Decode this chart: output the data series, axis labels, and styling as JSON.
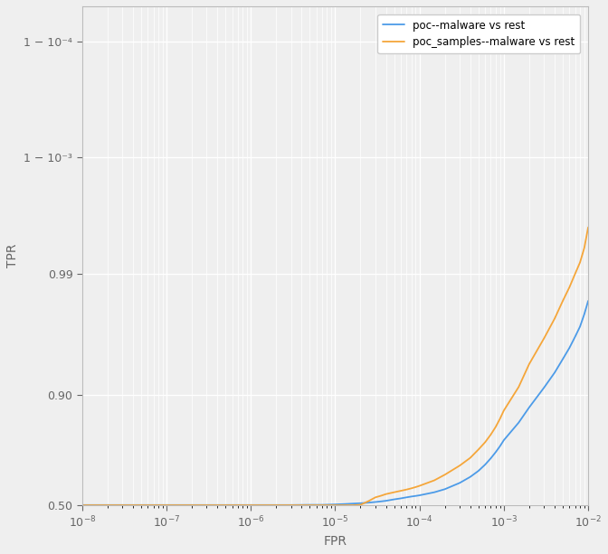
{
  "xlabel": "FPR",
  "ylabel": "TPR",
  "legend_labels": [
    "poc--malware vs rest",
    "poc_samples--malware vs rest"
  ],
  "line_colors": [
    "#4c9be8",
    "#f5a63a"
  ],
  "background_color": "#efefef",
  "grid_color": "#ffffff",
  "ytick_vals": [
    0.5,
    0.9,
    0.99,
    0.999,
    0.9999
  ],
  "ytick_labels": [
    "0.50",
    "0.90",
    "0.99",
    "1 − 10⁻³",
    "1 − 10⁻⁴"
  ],
  "blue_x": [
    1e-08,
    2e-08,
    5e-08,
    1e-07,
    2e-07,
    5e-07,
    1e-06,
    2e-06,
    3e-06,
    5e-06,
    7e-06,
    1e-05,
    1.3e-05,
    1.6e-05,
    2e-05,
    2.5e-05,
    3e-05,
    3.5e-05,
    4e-05,
    5e-05,
    6e-05,
    7e-05,
    8e-05,
    9e-05,
    0.0001,
    0.00015,
    0.0002,
    0.0003,
    0.0004,
    0.0005,
    0.0006,
    0.0007,
    0.0008,
    0.0009,
    0.001,
    0.0015,
    0.002,
    0.003,
    0.004,
    0.005,
    0.006,
    0.007,
    0.008,
    0.009,
    0.01
  ],
  "blue_y": [
    0.502,
    0.502,
    0.502,
    0.502,
    0.502,
    0.502,
    0.502,
    0.502,
    0.502,
    0.503,
    0.503,
    0.505,
    0.507,
    0.509,
    0.511,
    0.514,
    0.517,
    0.52,
    0.523,
    0.53,
    0.535,
    0.54,
    0.544,
    0.547,
    0.55,
    0.565,
    0.58,
    0.61,
    0.638,
    0.665,
    0.692,
    0.718,
    0.742,
    0.764,
    0.785,
    0.838,
    0.875,
    0.912,
    0.933,
    0.948,
    0.958,
    0.966,
    0.972,
    0.978,
    0.983
  ],
  "orange_x": [
    1e-08,
    2e-08,
    5e-08,
    1e-07,
    2e-07,
    5e-07,
    1e-06,
    2e-06,
    3e-06,
    5e-06,
    7e-06,
    1e-05,
    1.3e-05,
    1.6e-05,
    2e-05,
    2.5e-05,
    3e-05,
    3.5e-05,
    4e-05,
    5e-05,
    6e-05,
    7e-05,
    8e-05,
    9e-05,
    0.0001,
    0.00015,
    0.0002,
    0.0003,
    0.0004,
    0.0005,
    0.0006,
    0.0007,
    0.0008,
    0.0009,
    0.001,
    0.0015,
    0.002,
    0.003,
    0.004,
    0.005,
    0.006,
    0.007,
    0.008,
    0.009,
    0.01
  ],
  "orange_y": [
    0.501,
    0.501,
    0.501,
    0.501,
    0.501,
    0.501,
    0.501,
    0.501,
    0.501,
    0.501,
    0.501,
    0.501,
    0.501,
    0.501,
    0.503,
    0.522,
    0.54,
    0.548,
    0.556,
    0.565,
    0.572,
    0.578,
    0.584,
    0.59,
    0.596,
    0.622,
    0.648,
    0.688,
    0.72,
    0.752,
    0.778,
    0.803,
    0.826,
    0.848,
    0.868,
    0.913,
    0.943,
    0.965,
    0.976,
    0.983,
    0.987,
    0.99,
    0.992,
    0.994,
    0.996
  ]
}
